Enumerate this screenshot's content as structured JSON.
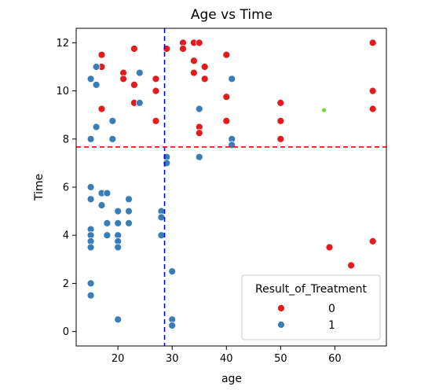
{
  "chart_data": {
    "type": "scatter",
    "title": "Age vs Time",
    "xlabel": "age",
    "ylabel": "Time",
    "xlim": [
      12.3,
      69.5
    ],
    "ylim": [
      -0.6,
      12.6
    ],
    "xticks": [
      20,
      30,
      40,
      50,
      60
    ],
    "yticks": [
      0,
      2,
      4,
      6,
      8,
      10,
      12
    ],
    "grid": false,
    "legend": {
      "title": "Result_of_Treatment",
      "placement": "lower-right"
    },
    "reference_lines": [
      {
        "orientation": "vertical",
        "value": 28.6,
        "color": "#0000ff",
        "style": "dashed"
      },
      {
        "orientation": "horizontal",
        "value": 7.67,
        "color": "#ff0000",
        "style": "dashed"
      }
    ],
    "series": [
      {
        "name": "0",
        "color": "#e41a1c",
        "points": [
          [
            17,
            11.5
          ],
          [
            17,
            11
          ],
          [
            17,
            9.25
          ],
          [
            21,
            10.75
          ],
          [
            21,
            10.5
          ],
          [
            23,
            11.75
          ],
          [
            23,
            10.25
          ],
          [
            23,
            9.5
          ],
          [
            27,
            10.5
          ],
          [
            27,
            10
          ],
          [
            27,
            8.75
          ],
          [
            29,
            11.75
          ],
          [
            32,
            12
          ],
          [
            32,
            11.75
          ],
          [
            34,
            12
          ],
          [
            34,
            11.25
          ],
          [
            34,
            10.75
          ],
          [
            35,
            12
          ],
          [
            35,
            8.5
          ],
          [
            35,
            8.25
          ],
          [
            36,
            11
          ],
          [
            36,
            10.5
          ],
          [
            40,
            11.5
          ],
          [
            40,
            9.75
          ],
          [
            40,
            8.75
          ],
          [
            50,
            9.5
          ],
          [
            50,
            8.75
          ],
          [
            50,
            8
          ],
          [
            59,
            3.5
          ],
          [
            63,
            2.75
          ],
          [
            67,
            12
          ],
          [
            67,
            10
          ],
          [
            67,
            9.25
          ],
          [
            67,
            3.75
          ]
        ]
      },
      {
        "name": "1",
        "color": "#377eb8",
        "points": [
          [
            15,
            10.5
          ],
          [
            15,
            8
          ],
          [
            15,
            6
          ],
          [
            15,
            5.5
          ],
          [
            15,
            4.25
          ],
          [
            15,
            4
          ],
          [
            15,
            3.75
          ],
          [
            15,
            3.5
          ],
          [
            15,
            2
          ],
          [
            15,
            1.5
          ],
          [
            16,
            11
          ],
          [
            16,
            10.25
          ],
          [
            16,
            8.5
          ],
          [
            17,
            5.75
          ],
          [
            17,
            5.25
          ],
          [
            18,
            5.75
          ],
          [
            18,
            4.5
          ],
          [
            18,
            4
          ],
          [
            19,
            8.75
          ],
          [
            19,
            8
          ],
          [
            20,
            5
          ],
          [
            20,
            4.5
          ],
          [
            20,
            4
          ],
          [
            20,
            3.75
          ],
          [
            20,
            3.5
          ],
          [
            20,
            0.5
          ],
          [
            22,
            5.5
          ],
          [
            22,
            5
          ],
          [
            22,
            4.5
          ],
          [
            24,
            10.75
          ],
          [
            24,
            9.5
          ],
          [
            28,
            5
          ],
          [
            28,
            4.75
          ],
          [
            28,
            4
          ],
          [
            29,
            7.25
          ],
          [
            29,
            7
          ],
          [
            30,
            2.5
          ],
          [
            30,
            0.5
          ],
          [
            30,
            0.25
          ],
          [
            35,
            9.25
          ],
          [
            35,
            7.25
          ],
          [
            41,
            10.5
          ],
          [
            41,
            8
          ],
          [
            41,
            7.75
          ]
        ]
      },
      {
        "name": "",
        "color": "#66dd22",
        "points": [
          [
            58,
            9.2
          ]
        ]
      }
    ]
  },
  "legend_entries": [
    {
      "label": "0",
      "color": "#e41a1c"
    },
    {
      "label": "1",
      "color": "#377eb8"
    }
  ]
}
